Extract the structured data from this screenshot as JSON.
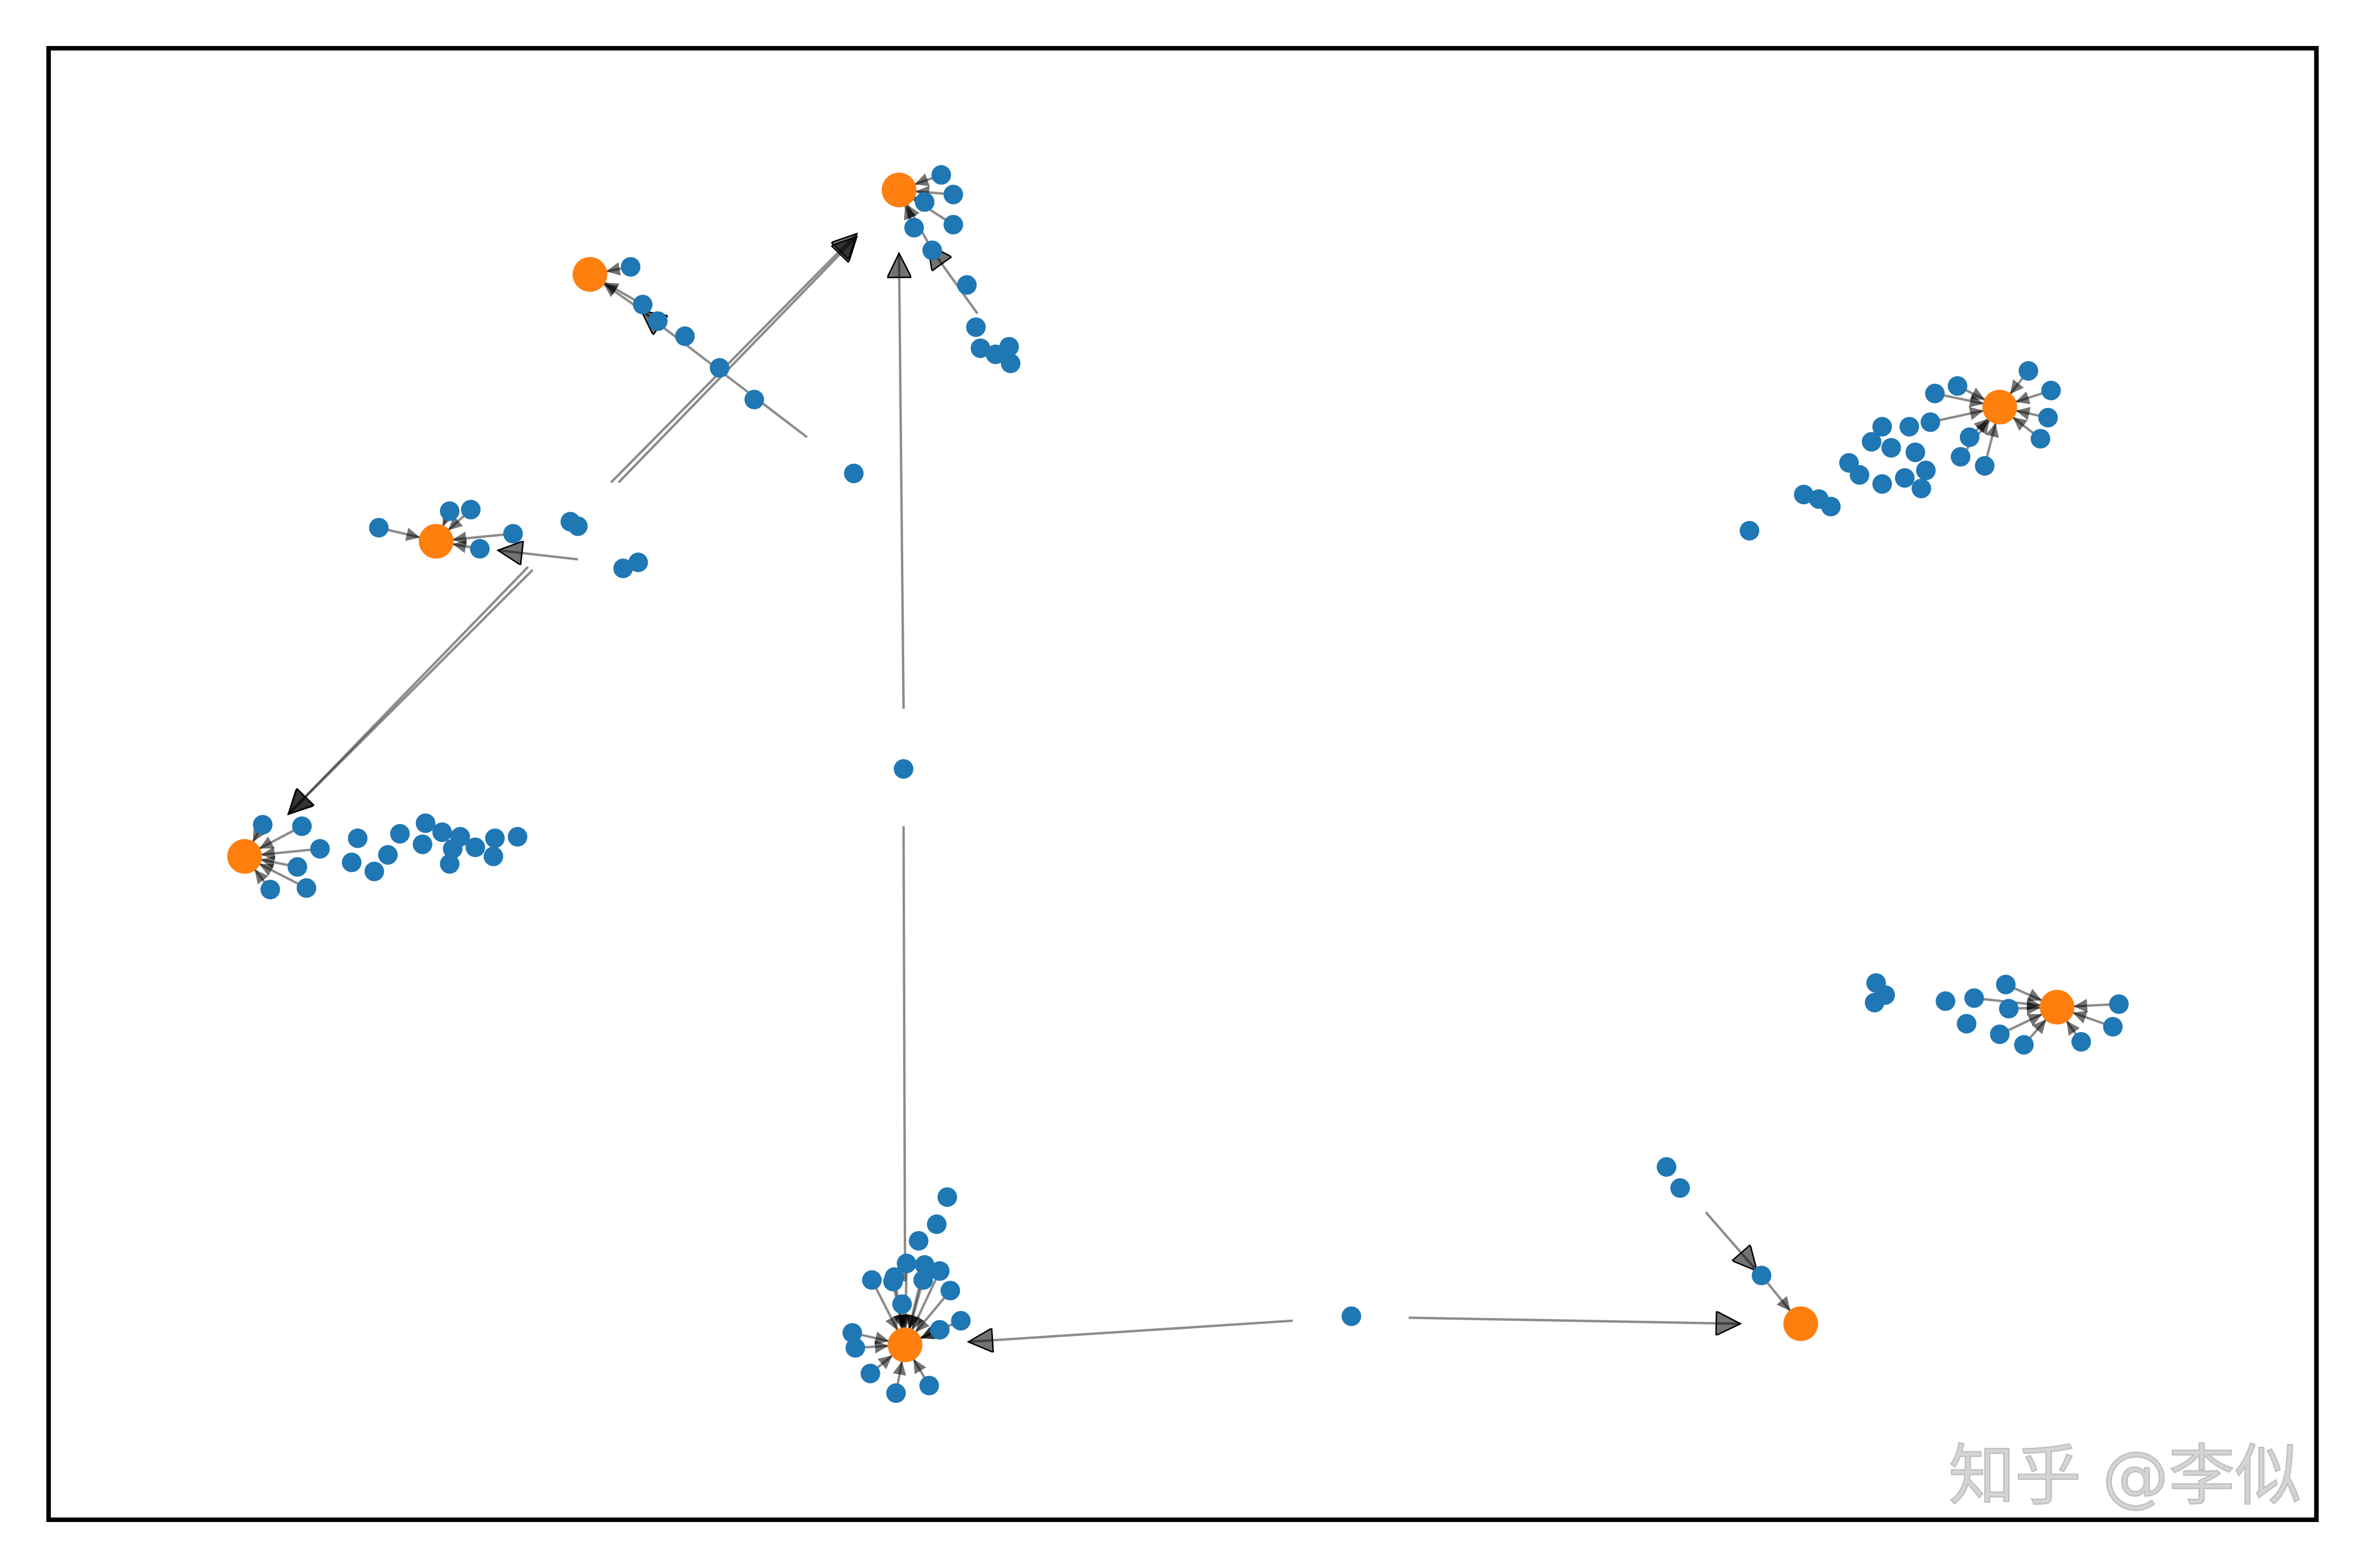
{
  "watermark": "知乎 @李似"
}
